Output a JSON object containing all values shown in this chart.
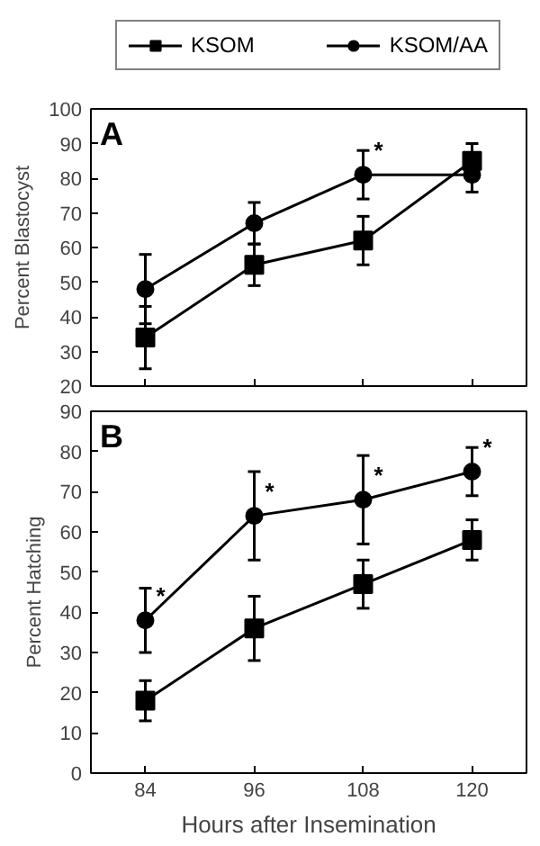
{
  "chart_data": [
    {
      "type": "line",
      "title": "A",
      "ylabel": "Percent Blastocyst",
      "x": [
        84,
        96,
        108,
        120
      ],
      "xlim": [
        78,
        126
      ],
      "xticks": [
        84,
        96,
        108,
        120
      ],
      "ylim": [
        20,
        100
      ],
      "yticks": [
        20,
        30,
        40,
        50,
        60,
        70,
        80,
        90,
        100
      ],
      "tick_labels": "y",
      "grid": false,
      "legend": "top",
      "series": [
        {
          "name": "KSOM",
          "color": "#000000",
          "marker": "square",
          "values": [
            34,
            55,
            62,
            85
          ],
          "errors": [
            9,
            6,
            7,
            5
          ]
        },
        {
          "name": "KSOM/AA",
          "color": "#000000",
          "marker": "circle",
          "values": [
            48,
            67,
            81,
            81
          ],
          "errors": [
            10,
            6,
            7,
            5
          ]
        }
      ],
      "annotations": [
        {
          "text": "*",
          "x": 108,
          "y": 81
        }
      ]
    },
    {
      "type": "line",
      "title": "B",
      "ylabel": "Percent Hatching",
      "xlabel": "Hours after Insemination",
      "x": [
        84,
        96,
        108,
        120
      ],
      "xlim": [
        78,
        126
      ],
      "xticks": [
        84,
        96,
        108,
        120
      ],
      "ylim": [
        0,
        90
      ],
      "yticks": [
        0,
        10,
        20,
        30,
        40,
        50,
        60,
        70,
        80,
        90
      ],
      "grid": false,
      "series": [
        {
          "color": "#000000",
          "marker": "square",
          "values": [
            18,
            36,
            47,
            58
          ],
          "errors": [
            5,
            8,
            6,
            5
          ]
        },
        {
          "color": "#000000",
          "marker": "circle",
          "values": [
            38,
            64,
            68,
            75
          ],
          "errors": [
            8,
            11,
            11,
            6
          ]
        }
      ],
      "annotations": [
        {
          "text": "*",
          "x": 84,
          "y": 38
        },
        {
          "text": "*",
          "x": 96,
          "y": 64
        },
        {
          "text": "*",
          "x": 108,
          "y": 68
        },
        {
          "text": "*",
          "x": 120,
          "y": 75
        }
      ]
    }
  ]
}
